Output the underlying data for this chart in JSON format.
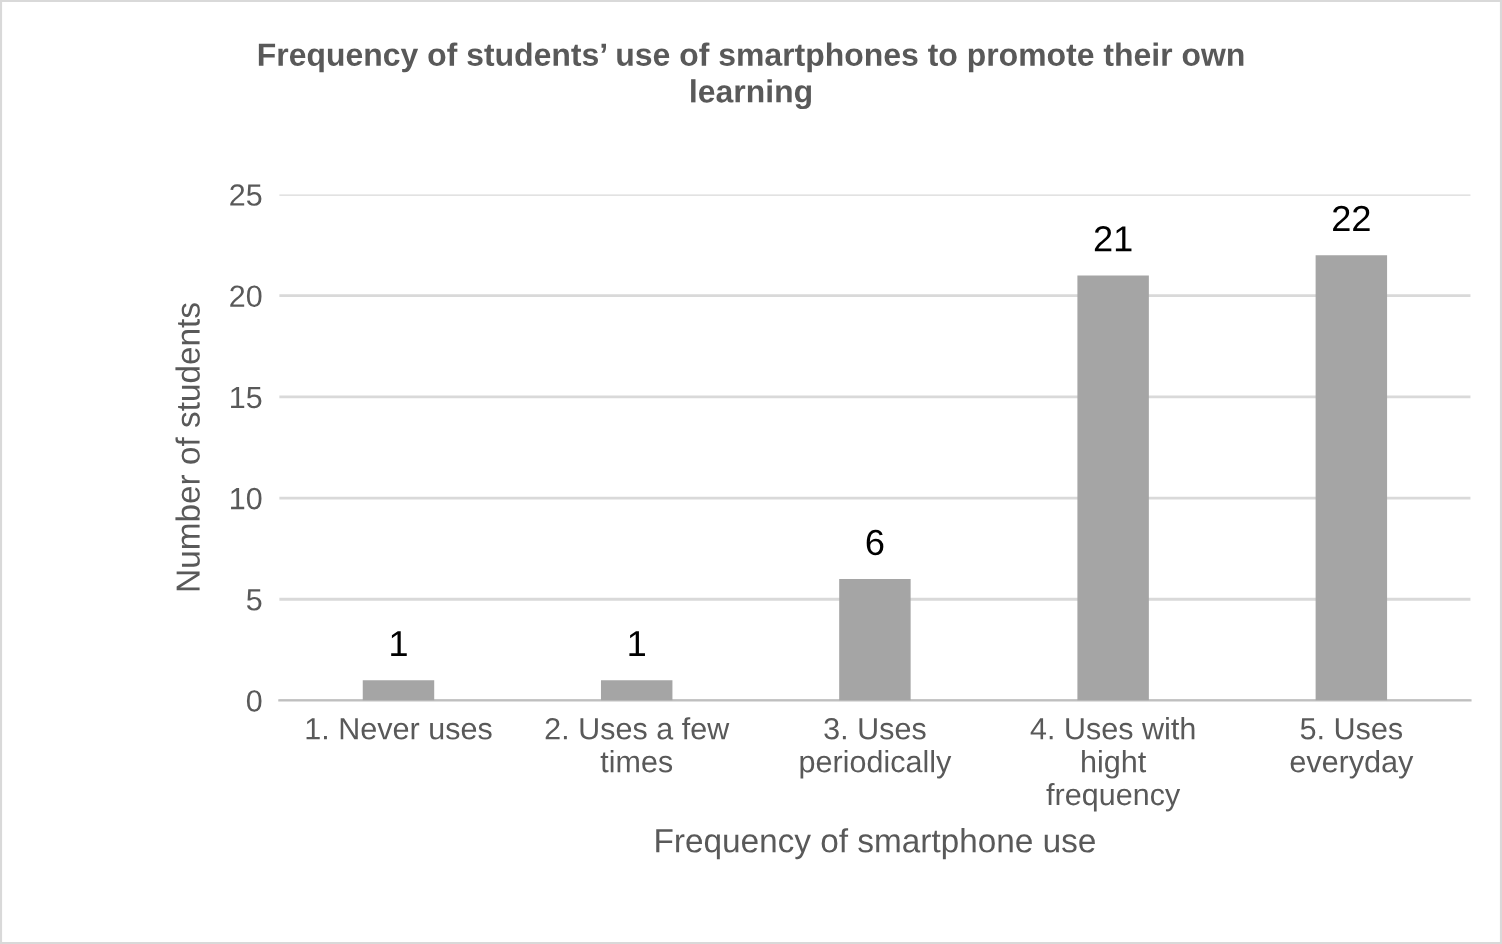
{
  "chart_data": {
    "type": "bar",
    "title": "Frequency of students’ use of smartphones to promote their own\nlearning",
    "xlabel": "Frequency of smartphone use",
    "ylabel": "Number of students",
    "categories": [
      "1. Never uses",
      "2. Uses a few\ntimes",
      "3. Uses\nperiodically",
      "4. Uses with\nhight\nfrequency",
      "5. Uses\neveryday"
    ],
    "values": [
      1,
      1,
      6,
      21,
      22
    ],
    "color": "#a5a5a5",
    "ylim": [
      0,
      25
    ],
    "yticks": [
      0,
      5,
      10,
      15,
      20,
      25
    ],
    "grid": "y",
    "data_labels": true
  }
}
